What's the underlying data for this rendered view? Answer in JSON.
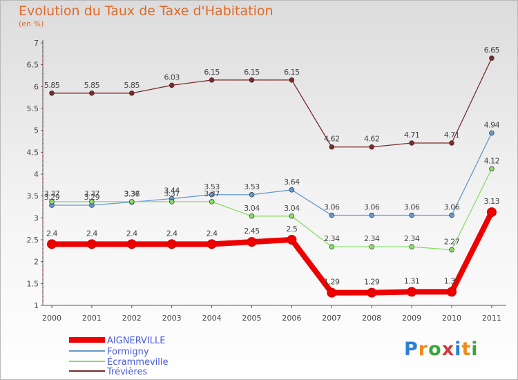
{
  "title": "Evolution du Taux de Taxe d'Habitation",
  "subtitle": "(en %)",
  "brand": {
    "letters": [
      "P",
      "r",
      "o",
      "x",
      "i",
      "t",
      "i"
    ],
    "colors": [
      "#2a7fd4",
      "#f08a1c",
      "#3aa63a",
      "#d43a3a",
      "#2a7fd4",
      "#f08a1c",
      "#3aa63a"
    ]
  },
  "chart_data": {
    "type": "line",
    "title": "Evolution du Taux de Taxe d'Habitation",
    "ylabel": "(en %)",
    "xlabel": "",
    "x": [
      "2000",
      "2001",
      "2002",
      "2003",
      "2004",
      "2005",
      "2006",
      "2007",
      "2008",
      "2009",
      "2010",
      "2011"
    ],
    "ylim": [
      1,
      7
    ],
    "yticks": [
      "1",
      "1.5",
      "2",
      "2.5",
      "3",
      "3.5",
      "4",
      "4.5",
      "5",
      "5.5",
      "6",
      "6.5",
      "7"
    ],
    "grid": false,
    "legend_position": "bottom-left",
    "series": [
      {
        "name": "AIGNERVILLE",
        "color": "#ee0000",
        "thick": true,
        "values": [
          2.4,
          2.4,
          2.4,
          2.4,
          2.4,
          2.45,
          2.5,
          1.29,
          1.29,
          1.31,
          1.31,
          3.13
        ],
        "labels": [
          "2.4",
          "2.4",
          "2.4",
          "2.4",
          "2.4",
          "2.45",
          "2.5",
          "1.29",
          "1.29",
          "1.31",
          "1.31",
          "3.13"
        ]
      },
      {
        "name": "Formigny",
        "color": "#6699cc",
        "thick": false,
        "values": [
          3.29,
          3.29,
          3.36,
          3.44,
          3.53,
          3.53,
          3.64,
          3.06,
          3.06,
          3.06,
          3.06,
          4.94
        ],
        "labels": [
          "3.29",
          "3.29",
          "3.36",
          "3.44",
          "3.53",
          "3.53",
          "3.64",
          "3.06",
          "3.06",
          "3.06",
          "3.06",
          "4.94"
        ]
      },
      {
        "name": "Écrammeville",
        "color": "#88dd66",
        "thick": false,
        "values": [
          3.37,
          3.37,
          3.37,
          3.37,
          3.37,
          3.04,
          3.04,
          2.34,
          2.34,
          2.34,
          2.27,
          4.12
        ],
        "labels": [
          "3.37",
          "3.37",
          "3.37",
          "3.37",
          "3.37",
          "3.04",
          "3.04",
          "2.34",
          "2.34",
          "2.34",
          "2.27",
          "4.12"
        ]
      },
      {
        "name": "Trévières",
        "color": "#7a2a2a",
        "thick": false,
        "values": [
          5.85,
          5.85,
          5.85,
          6.03,
          6.15,
          6.15,
          6.15,
          4.62,
          4.62,
          4.71,
          4.71,
          6.65
        ],
        "labels": [
          "5.85",
          "5.85",
          "5.85",
          "6.03",
          "6.15",
          "6.15",
          "6.15",
          "4.62",
          "4.62",
          "4.71",
          "4.71",
          "6.65"
        ]
      }
    ]
  }
}
